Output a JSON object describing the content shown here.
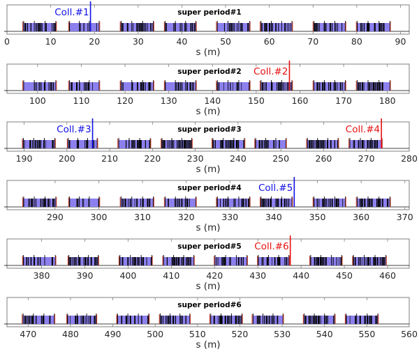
{
  "colors": {
    "blue_collimator": "#1010e6",
    "red_collimator": "#e61010",
    "magnet_fill": "#8c80ee",
    "magnet_dark": "#000000",
    "magnet_edge": "#c44a3a"
  },
  "chart_data": {
    "type": "lattice-layout",
    "xlabel": "s (m)",
    "panels": [
      {
        "title": "super period#1",
        "xlabel": "s (m)",
        "xlim": [
          0,
          92
        ],
        "xticks": [
          0,
          10,
          20,
          30,
          40,
          50,
          60,
          70,
          80,
          90
        ],
        "cells": [
          [
            3.7,
            11.2
          ],
          [
            14.2,
            21.1
          ],
          [
            26.0,
            33.5
          ],
          [
            36.1,
            43.2
          ],
          [
            48.0,
            55.5
          ],
          [
            58.0,
            65.2
          ],
          [
            70.1,
            77.4
          ],
          [
            80.0,
            87.6
          ]
        ],
        "collimators": [
          {
            "label": "Coll.#1",
            "s": 19.1,
            "color": "blue",
            "label_side": "left"
          }
        ]
      },
      {
        "title": "super period#2",
        "xlabel": "s (m)",
        "xlim": [
          93,
          185
        ],
        "xticks": [
          100,
          110,
          120,
          130,
          140,
          150,
          160,
          170,
          180
        ],
        "cells": [
          [
            96.7,
            104.2
          ],
          [
            107.2,
            114.1
          ],
          [
            119.0,
            126.5
          ],
          [
            129.1,
            136.2
          ],
          [
            141.0,
            148.5
          ],
          [
            151.0,
            158.2
          ],
          [
            163.1,
            170.4
          ],
          [
            173.0,
            180.6
          ]
        ],
        "collimators": [
          {
            "label": "Coll.#2",
            "s": 157.6,
            "color": "red",
            "label_side": "left"
          }
        ]
      },
      {
        "title": "super period#3",
        "xlabel": "s (m)",
        "xlim": [
          186,
          280
        ],
        "xticks": [
          190,
          200,
          210,
          220,
          230,
          240,
          250,
          260,
          270,
          280
        ],
        "cells": [
          [
            189.7,
            197.2
          ],
          [
            200.2,
            207.1
          ],
          [
            212.0,
            219.5
          ],
          [
            222.1,
            229.2
          ],
          [
            234.0,
            241.5
          ],
          [
            244.0,
            251.2
          ],
          [
            256.1,
            263.4
          ],
          [
            266.0,
            273.6
          ]
        ],
        "collimators": [
          {
            "label": "Coll.#3",
            "s": 206.0,
            "color": "blue",
            "label_side": "left"
          },
          {
            "label": "Coll.#4",
            "s": 273.5,
            "color": "red",
            "label_side": "left"
          }
        ]
      },
      {
        "title": "super period#4",
        "xlabel": "s (m)",
        "xlim": [
          279,
          371
        ],
        "xticks": [
          290,
          300,
          310,
          320,
          330,
          340,
          350,
          360,
          370
        ],
        "cells": [
          [
            282.7,
            290.2
          ],
          [
            293.2,
            300.1
          ],
          [
            305.0,
            312.5
          ],
          [
            315.1,
            322.2
          ],
          [
            327.0,
            334.5
          ],
          [
            337.0,
            344.2
          ],
          [
            349.1,
            356.4
          ],
          [
            359.0,
            366.6
          ]
        ],
        "collimators": [
          {
            "label": "Coll.#5",
            "s": 344.7,
            "color": "blue",
            "label_side": "left"
          }
        ]
      },
      {
        "title": "super period#5",
        "xlabel": "s (m)",
        "xlim": [
          372,
          465
        ],
        "xticks": [
          380,
          390,
          400,
          410,
          420,
          430,
          440,
          450,
          460
        ],
        "cells": [
          [
            375.7,
            383.2
          ],
          [
            386.2,
            393.1
          ],
          [
            398.0,
            405.5
          ],
          [
            408.1,
            415.2
          ],
          [
            420.0,
            427.5
          ],
          [
            430.0,
            437.2
          ],
          [
            442.1,
            449.4
          ],
          [
            452.0,
            459.6
          ]
        ],
        "collimators": [
          {
            "label": "Coll.#6",
            "s": 437.5,
            "color": "red",
            "label_side": "left"
          }
        ]
      },
      {
        "title": "super period#6",
        "xlabel": "s (m)",
        "xlim": [
          465,
          560
        ],
        "xticks": [
          470,
          480,
          490,
          500,
          510,
          520,
          530,
          540,
          550,
          560
        ],
        "cells": [
          [
            468.7,
            476.2
          ],
          [
            479.2,
            486.1
          ],
          [
            491.0,
            498.5
          ],
          [
            501.1,
            508.2
          ],
          [
            513.0,
            520.5
          ],
          [
            523.0,
            530.2
          ],
          [
            535.1,
            542.4
          ],
          [
            545.0,
            552.6
          ]
        ],
        "collimators": []
      }
    ]
  }
}
